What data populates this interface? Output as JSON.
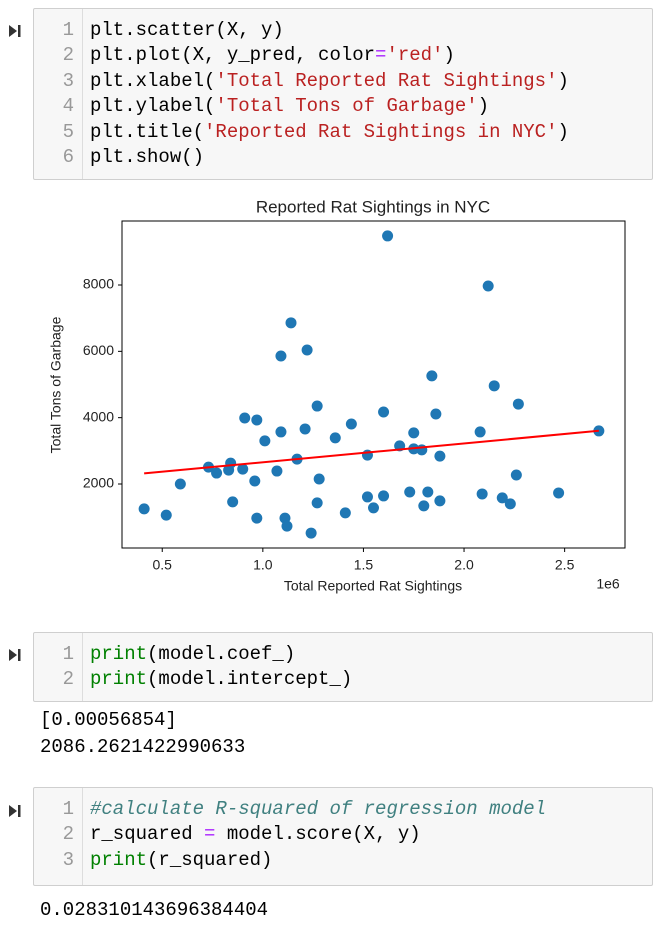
{
  "cells": [
    {
      "lines": [
        {
          "n": 1,
          "tokens": [
            "plt.scatter(X, y)"
          ]
        },
        {
          "n": 2,
          "tokens": [
            "plt.plot(X, y_pred, color",
            "=",
            "'red'",
            ")"
          ]
        },
        {
          "n": 3,
          "tokens": [
            "plt.xlabel(",
            "'Total Reported Rat Sightings'",
            ")"
          ]
        },
        {
          "n": 4,
          "tokens": [
            "plt.ylabel(",
            "'Total Tons of Garbage'",
            ")"
          ]
        },
        {
          "n": 5,
          "tokens": [
            "plt.title(",
            "'Reported Rat Sightings in NYC'",
            ")"
          ]
        },
        {
          "n": 6,
          "tokens": [
            "plt.show()"
          ]
        }
      ],
      "output": []
    },
    {
      "lines": [
        {
          "n": 1,
          "tokens": [
            "print",
            "(model.coef_)"
          ]
        },
        {
          "n": 2,
          "tokens": [
            "print",
            "(model.intercept_)"
          ]
        }
      ],
      "output": [
        "[0.00056854]",
        "2086.2621422990633"
      ]
    },
    {
      "lines": [
        {
          "n": 1,
          "tokens": [
            "#calculate R-squared of regression model"
          ]
        },
        {
          "n": 2,
          "tokens": [
            "r_squared ",
            "=",
            " model.score(X, y)"
          ]
        },
        {
          "n": 3,
          "tokens": [
            "print",
            "(r_squared)"
          ]
        }
      ],
      "output": [
        "0.028310143696384404"
      ]
    }
  ],
  "chart_data": {
    "type": "scatter",
    "title": "Reported Rat Sightings in NYC",
    "x_label": "Total Reported Rat Sightings",
    "y_label": "Total Tons of Garbage",
    "x_offset_label": "1e6",
    "color": "#1f77b4",
    "x": [
      410000,
      520000,
      590000,
      730000,
      770000,
      830000,
      840000,
      850000,
      900000,
      910000,
      970000,
      960000,
      970000,
      1010000,
      1070000,
      1090000,
      1090000,
      1110000,
      1120000,
      1140000,
      1170000,
      1210000,
      1220000,
      1240000,
      1270000,
      1280000,
      1270000,
      1360000,
      1410000,
      1440000,
      1520000,
      1520000,
      1550000,
      1600000,
      1600000,
      1620000,
      1680000,
      1730000,
      1750000,
      1750000,
      1790000,
      1800000,
      1820000,
      1840000,
      1860000,
      1880000,
      1880000,
      2080000,
      2090000,
      2120000,
      2150000,
      2190000,
      2230000,
      2260000,
      2270000,
      2470000,
      2670000
    ],
    "values": [
      1250,
      1060,
      2000,
      2510,
      2330,
      2420,
      2630,
      1460,
      2450,
      3990,
      3930,
      2090,
      970,
      3300,
      2390,
      3570,
      5860,
      970,
      730,
      6860,
      2750,
      3660,
      6040,
      520,
      4350,
      2150,
      1430,
      3390,
      1130,
      3810,
      2870,
      1610,
      1280,
      1640,
      4170,
      9480,
      3150,
      1760,
      3540,
      3060,
      3030,
      1340,
      1760,
      5260,
      4110,
      2840,
      1490,
      3570,
      1700,
      7970,
      4960,
      1580,
      1400,
      2270,
      4410,
      1730,
      3600
    ],
    "line": {
      "color": "red",
      "x": [
        410000,
        2670000
      ],
      "values": [
        2319,
        3604
      ]
    },
    "xlim": [
      300000,
      2800000
    ],
    "ylim": [
      70,
      9930
    ],
    "xticks": [
      {
        "value": 500000,
        "label": "0.5"
      },
      {
        "value": 1000000,
        "label": "1.0"
      },
      {
        "value": 1500000,
        "label": "1.5"
      },
      {
        "value": 2000000,
        "label": "2.0"
      },
      {
        "value": 2500000,
        "label": "2.5"
      }
    ],
    "yticks": [
      2000,
      4000,
      6000,
      8000
    ]
  }
}
